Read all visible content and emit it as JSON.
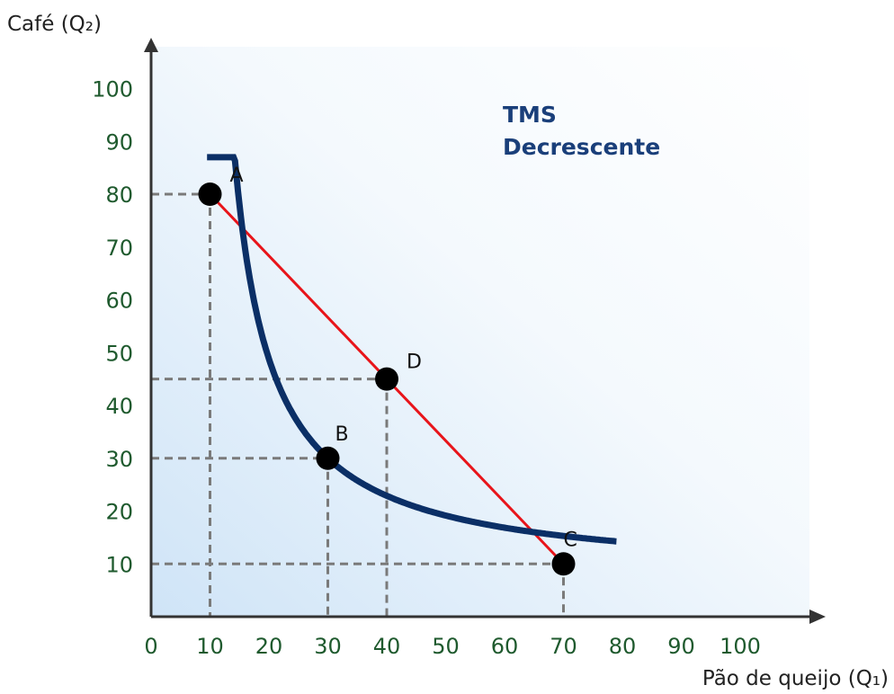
{
  "chart_data": {
    "type": "line",
    "xlabel": "Pão de queijo (Q₁)",
    "ylabel": "Café (Q₂)",
    "xlim": [
      0,
      110
    ],
    "ylim": [
      0,
      110
    ],
    "x_ticks": [
      "0",
      "10",
      "20",
      "30",
      "40",
      "50",
      "60",
      "70",
      "80",
      "90",
      "100"
    ],
    "y_ticks": [
      "10",
      "20",
      "30",
      "40",
      "50",
      "60",
      "70",
      "80",
      "90",
      "100"
    ],
    "annotation": [
      "TMS",
      "Decrescente"
    ],
    "grid": false,
    "points": [
      {
        "label": "A",
        "x": 10,
        "y": 80
      },
      {
        "label": "B",
        "x": 30,
        "y": 30
      },
      {
        "label": "C",
        "x": 70,
        "y": 10
      },
      {
        "label": "D",
        "x": 40,
        "y": 45
      }
    ],
    "series": [
      {
        "role": "indifference-curve",
        "color": "#0b2f66",
        "x_range": [
          9.5,
          79
        ],
        "y_max": 87
      },
      {
        "role": "segment",
        "color": "#e8141a",
        "from": "A",
        "to": "C"
      }
    ],
    "colors": {
      "curve": "#0b2f66",
      "line": "#e8141a",
      "point": "#000000",
      "guide": "#7a7a7a",
      "axis": "#333333",
      "annotation": "#1a3f7a"
    }
  }
}
